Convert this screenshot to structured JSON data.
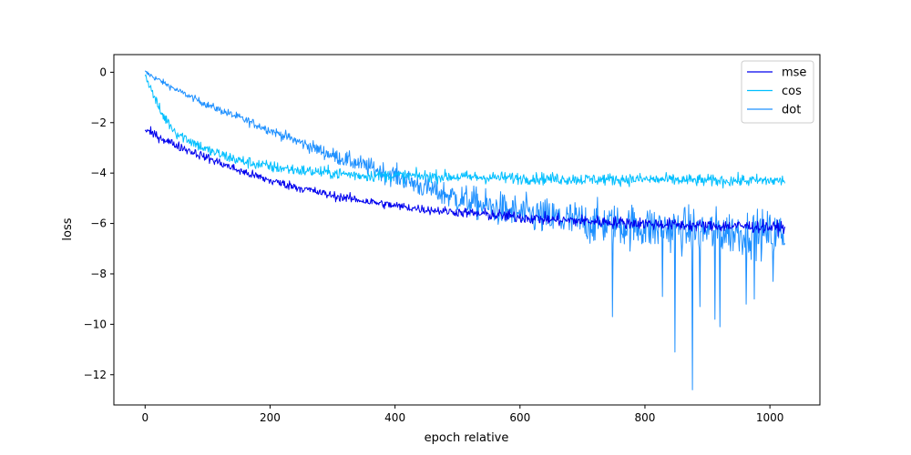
{
  "chart_data": {
    "type": "line",
    "title": "",
    "xlabel": "epoch relative",
    "ylabel": "loss",
    "xlim": [
      -50,
      1080
    ],
    "ylim": [
      -13.2,
      0.7
    ],
    "xticks": [
      0,
      200,
      400,
      600,
      800,
      1000
    ],
    "yticks": [
      0,
      -2,
      -4,
      -6,
      -8,
      -10,
      -12
    ],
    "xtick_labels": [
      "0",
      "200",
      "400",
      "600",
      "800",
      "1000"
    ],
    "ytick_labels": [
      "0",
      "−2",
      "−4",
      "−6",
      "−8",
      "−10",
      "−12"
    ],
    "legend_position": "top-right",
    "grid": false,
    "series": [
      {
        "name": "mse",
        "color": "#0000ee",
        "x": [
          0,
          25,
          50,
          100,
          150,
          200,
          250,
          300,
          350,
          400,
          450,
          500,
          550,
          600,
          650,
          700,
          750,
          800,
          850,
          900,
          950,
          1000,
          1024
        ],
        "y": [
          -2.3,
          -2.6,
          -2.9,
          -3.4,
          -3.9,
          -4.3,
          -4.6,
          -4.9,
          -5.1,
          -5.3,
          -5.45,
          -5.55,
          -5.65,
          -5.75,
          -5.85,
          -5.9,
          -5.95,
          -6.0,
          -6.05,
          -6.1,
          -6.1,
          -6.15,
          -6.15
        ],
        "noise": [
          0.15,
          0.15,
          0.15,
          0.15,
          0.15,
          0.15,
          0.15,
          0.15,
          0.15,
          0.15,
          0.15,
          0.15,
          0.2,
          0.2,
          0.2,
          0.2,
          0.2,
          0.2,
          0.2,
          0.2,
          0.2,
          0.2,
          0.2
        ]
      },
      {
        "name": "cos",
        "color": "#00bfff",
        "x": [
          0,
          10,
          25,
          50,
          100,
          150,
          200,
          250,
          300,
          350,
          400,
          500,
          600,
          700,
          800,
          900,
          1000,
          1024
        ],
        "y": [
          -0.1,
          -0.7,
          -1.6,
          -2.4,
          -3.1,
          -3.5,
          -3.75,
          -3.9,
          -4.0,
          -4.1,
          -4.1,
          -4.15,
          -4.2,
          -4.25,
          -4.25,
          -4.3,
          -4.3,
          -4.3
        ],
        "noise": [
          0.1,
          0.15,
          0.2,
          0.2,
          0.2,
          0.2,
          0.2,
          0.2,
          0.2,
          0.2,
          0.2,
          0.2,
          0.2,
          0.2,
          0.2,
          0.2,
          0.2,
          0.2
        ]
      },
      {
        "name": "dot",
        "color": "#1e90ff",
        "x": [
          0,
          50,
          100,
          150,
          200,
          250,
          300,
          350,
          400,
          450,
          500,
          550,
          600,
          650,
          700,
          750,
          800,
          850,
          900,
          950,
          1000,
          1024
        ],
        "y": [
          0.0,
          -0.7,
          -1.3,
          -1.8,
          -2.3,
          -2.8,
          -3.3,
          -3.7,
          -4.1,
          -4.6,
          -5.0,
          -5.35,
          -5.6,
          -5.8,
          -5.95,
          -6.05,
          -6.15,
          -6.25,
          -6.3,
          -6.35,
          -6.4,
          -6.4
        ],
        "noise": [
          0.1,
          0.1,
          0.12,
          0.15,
          0.15,
          0.2,
          0.25,
          0.3,
          0.35,
          0.4,
          0.5,
          0.55,
          0.6,
          0.65,
          0.7,
          0.7,
          0.75,
          0.75,
          0.75,
          0.75,
          0.75,
          0.75
        ]
      }
    ],
    "spikes": [
      {
        "series": "dot",
        "x": 748,
        "y": -9.7
      },
      {
        "series": "dot",
        "x": 828,
        "y": -8.9
      },
      {
        "series": "dot",
        "x": 848,
        "y": -11.1
      },
      {
        "series": "dot",
        "x": 876,
        "y": -12.6
      },
      {
        "series": "dot",
        "x": 888,
        "y": -9.3
      },
      {
        "series": "dot",
        "x": 912,
        "y": -9.8
      },
      {
        "series": "dot",
        "x": 920,
        "y": -10.1
      },
      {
        "series": "dot",
        "x": 962,
        "y": -9.2
      },
      {
        "series": "dot",
        "x": 975,
        "y": -9.0
      },
      {
        "series": "dot",
        "x": 1005,
        "y": -8.3
      }
    ]
  }
}
